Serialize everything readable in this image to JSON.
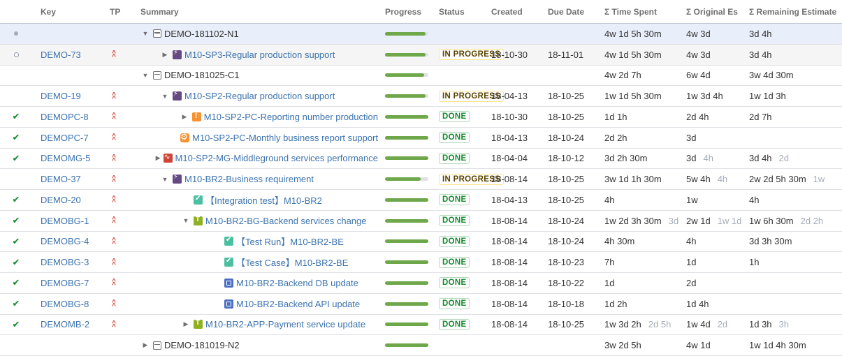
{
  "headers": {
    "key": "Key",
    "tp": "TP",
    "summary": "Summary",
    "progress": "Progress",
    "status": "Status",
    "created": "Created",
    "due": "Due Date",
    "time_spent": "Σ Time Spent",
    "orig_est": "Σ Original Es",
    "rem_est": "Σ Remaining Estimate"
  },
  "colors": {
    "link": "#3b73af",
    "priority": "#d04437",
    "progress_fill": "#6ea84a",
    "done": "#14892c",
    "in_progress": "#594300",
    "selected_row": "#e8eefa"
  },
  "rows": [
    {
      "mark": "dot",
      "key": "",
      "tp": false,
      "indent": 1,
      "expander": "down",
      "icon": "package-icon",
      "summary": "DEMO-181102-N1",
      "summary_style": "dark",
      "progress": 0.93,
      "status": "",
      "created": "",
      "due": "",
      "time_spent": "4w 1d 5h 30m",
      "time_spent_dim": "",
      "orig_est": "4w 3d",
      "orig_est_dim": "",
      "rem_est": "3d 4h",
      "rem_est_dim": "",
      "row_style": "selected"
    },
    {
      "mark": "ring",
      "key": "DEMO-73",
      "tp": true,
      "indent": 2,
      "expander": "right",
      "icon": "epic-icon",
      "summary": "M10-SP3-Regular production support",
      "summary_style": "link",
      "progress": 0.93,
      "status": "IN PROGRESS",
      "created": "18-10-30",
      "due": "18-11-01",
      "time_spent": "4w 1d 5h 30m",
      "time_spent_dim": "",
      "orig_est": "4w 3d",
      "orig_est_dim": "",
      "rem_est": "3d 4h",
      "rem_est_dim": "",
      "row_style": "hover"
    },
    {
      "mark": "",
      "key": "",
      "tp": false,
      "indent": 1,
      "expander": "down",
      "icon": "package-icon",
      "summary": "DEMO-181025-C1",
      "summary_style": "dark",
      "progress": 0.9,
      "status": "",
      "created": "",
      "due": "",
      "time_spent": "4w 2d 7h",
      "time_spent_dim": "",
      "orig_est": "6w 4d",
      "orig_est_dim": "",
      "rem_est": "3w 4d 30m",
      "rem_est_dim": "",
      "row_style": ""
    },
    {
      "mark": "",
      "key": "DEMO-19",
      "tp": true,
      "indent": 2,
      "expander": "down",
      "icon": "epic-icon",
      "summary": "M10-SP2-Regular production support",
      "summary_style": "link",
      "progress": 0.93,
      "status": "IN PROGRESS",
      "created": "18-04-13",
      "due": "18-10-25",
      "time_spent": "1w 1d 5h 30m",
      "time_spent_dim": "",
      "orig_est": "1w 3d 4h",
      "orig_est_dim": "",
      "rem_est": "1w 1d 3h",
      "rem_est_dim": "",
      "row_style": ""
    },
    {
      "mark": "check",
      "key": "DEMOPC-8",
      "tp": true,
      "indent": 3,
      "expander": "right",
      "icon": "improvement-icon",
      "summary": "M10-SP2-PC-Reporting number production",
      "summary_style": "link",
      "progress": 1,
      "status": "DONE",
      "created": "18-10-30",
      "due": "18-10-25",
      "time_spent": "1d 1h",
      "time_spent_dim": "",
      "orig_est": "2d 4h",
      "orig_est_dim": "",
      "rem_est": "2d 7h",
      "rem_est_dim": "",
      "row_style": ""
    },
    {
      "mark": "check",
      "key": "DEMOPC-7",
      "tp": true,
      "indent": 3,
      "expander": "none",
      "icon": "gear-icon",
      "summary": "M10-SP2-PC-Monthly business report support",
      "summary_style": "link",
      "progress": 1,
      "status": "DONE",
      "created": "18-04-13",
      "due": "18-10-24",
      "time_spent": "2d 2h",
      "time_spent_dim": "",
      "orig_est": "3d",
      "orig_est_dim": "",
      "rem_est": "",
      "rem_est_dim": "",
      "row_style": ""
    },
    {
      "mark": "check",
      "key": "DEMOMG-5",
      "tp": true,
      "indent": 3,
      "expander": "right",
      "icon": "wave-icon",
      "summary": "M10-SP2-MG-Middleground services performance",
      "summary_style": "link",
      "progress": 1,
      "status": "DONE",
      "created": "18-04-04",
      "due": "18-10-12",
      "time_spent": "3d 2h 30m",
      "time_spent_dim": "",
      "orig_est": "3d",
      "orig_est_dim": "4h",
      "rem_est": "3d 4h",
      "rem_est_dim": "2d",
      "row_style": ""
    },
    {
      "mark": "",
      "key": "DEMO-37",
      "tp": true,
      "indent": 2,
      "expander": "down",
      "icon": "epic-icon",
      "summary": "M10-BR2-Business requirement",
      "summary_style": "link",
      "progress": 0.82,
      "status": "IN PROGRESS",
      "created": "18-08-14",
      "due": "18-10-25",
      "time_spent": "3w 1d 1h 30m",
      "time_spent_dim": "",
      "orig_est": "5w 4h",
      "orig_est_dim": "4h",
      "rem_est": "2w 2d 5h 30m",
      "rem_est_dim": "1w",
      "row_style": ""
    },
    {
      "mark": "check",
      "key": "DEMO-20",
      "tp": true,
      "indent": 3,
      "expander": "none",
      "icon": "checkbox-icon",
      "summary": "【Integration test】M10-BR2",
      "summary_style": "link",
      "progress": 1,
      "status": "DONE",
      "created": "18-04-13",
      "due": "18-10-25",
      "time_spent": "4h",
      "time_spent_dim": "",
      "orig_est": "1w",
      "orig_est_dim": "",
      "rem_est": "4h",
      "rem_est_dim": "",
      "row_style": ""
    },
    {
      "mark": "check",
      "key": "DEMOBG-1",
      "tp": true,
      "indent": 3,
      "expander": "down",
      "icon": "task-icon",
      "summary": "M10-BR2-BG-Backend services change",
      "summary_style": "link",
      "progress": 1,
      "status": "DONE",
      "created": "18-08-14",
      "due": "18-10-24",
      "time_spent": "1w 2d 3h 30m",
      "time_spent_dim": "3d",
      "orig_est": "2w 1d",
      "orig_est_dim": "1w 1d",
      "rem_est": "1w 6h 30m",
      "rem_est_dim": "2d 2h",
      "row_style": ""
    },
    {
      "mark": "check",
      "key": "DEMOBG-4",
      "tp": true,
      "indent": 4,
      "expander": "none",
      "icon": "checkbox-icon",
      "summary": "【Test Run】M10-BR2-BE",
      "summary_style": "link",
      "progress": 1,
      "status": "DONE",
      "created": "18-08-14",
      "due": "18-10-24",
      "time_spent": "4h 30m",
      "time_spent_dim": "",
      "orig_est": "4h",
      "orig_est_dim": "",
      "rem_est": "3d 3h 30m",
      "rem_est_dim": "",
      "row_style": ""
    },
    {
      "mark": "check",
      "key": "DEMOBG-3",
      "tp": true,
      "indent": 4,
      "expander": "none",
      "icon": "checkbox-icon",
      "summary": "【Test Case】M10-BR2-BE",
      "summary_style": "link",
      "progress": 1,
      "status": "DONE",
      "created": "18-08-14",
      "due": "18-10-23",
      "time_spent": "7h",
      "time_spent_dim": "",
      "orig_est": "1d",
      "orig_est_dim": "",
      "rem_est": "1h",
      "rem_est_dim": "",
      "row_style": ""
    },
    {
      "mark": "check",
      "key": "DEMOBG-7",
      "tp": true,
      "indent": 4,
      "expander": "none",
      "icon": "subtask-icon",
      "summary": "M10-BR2-Backend DB update",
      "summary_style": "link",
      "progress": 1,
      "status": "DONE",
      "created": "18-08-14",
      "due": "18-10-22",
      "time_spent": "1d",
      "time_spent_dim": "",
      "orig_est": "2d",
      "orig_est_dim": "",
      "rem_est": "",
      "rem_est_dim": "",
      "row_style": ""
    },
    {
      "mark": "check",
      "key": "DEMOBG-8",
      "tp": true,
      "indent": 4,
      "expander": "none",
      "icon": "subtask-icon",
      "summary": "M10-BR2-Backend API update",
      "summary_style": "link",
      "progress": 1,
      "status": "DONE",
      "created": "18-08-14",
      "due": "18-10-18",
      "time_spent": "1d 2h",
      "time_spent_dim": "",
      "orig_est": "1d 4h",
      "orig_est_dim": "",
      "rem_est": "",
      "rem_est_dim": "",
      "row_style": ""
    },
    {
      "mark": "check",
      "key": "DEMOMB-2",
      "tp": true,
      "indent": 3,
      "expander": "right",
      "icon": "task-icon",
      "summary": "M10-BR2-APP-Payment service update",
      "summary_style": "link",
      "progress": 1,
      "status": "DONE",
      "created": "18-08-14",
      "due": "18-10-25",
      "time_spent": "1w 3d 2h",
      "time_spent_dim": "2d 5h",
      "orig_est": "1w 4d",
      "orig_est_dim": "2d",
      "rem_est": "1d 3h",
      "rem_est_dim": "3h",
      "row_style": ""
    },
    {
      "mark": "",
      "key": "",
      "tp": false,
      "indent": 0,
      "expander": "right",
      "icon": "package-icon",
      "summary": "DEMO-181019-N2",
      "summary_style": "dark",
      "progress": 1,
      "status": "",
      "created": "",
      "due": "",
      "time_spent": "3w 2d 5h",
      "time_spent_dim": "",
      "orig_est": "4w 1d",
      "orig_est_dim": "",
      "rem_est": "1w 1d 4h 30m",
      "rem_est_dim": "",
      "row_style": ""
    }
  ]
}
